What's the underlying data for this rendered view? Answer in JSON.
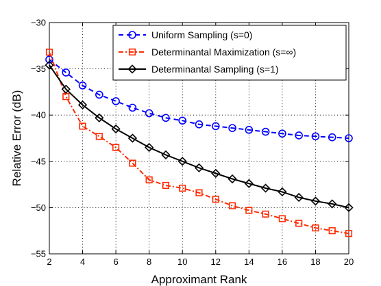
{
  "chart_data": {
    "type": "line",
    "xlabel": "Approximant Rank",
    "ylabel": "Relative Error (dB)",
    "xlim": [
      2,
      20
    ],
    "ylim": [
      -55,
      -30
    ],
    "xticks": [
      2,
      4,
      6,
      8,
      10,
      12,
      14,
      16,
      18,
      20
    ],
    "xtick_labels": [
      "2",
      "4",
      "6",
      "8",
      "10",
      "12",
      "14",
      "16",
      "18",
      "20"
    ],
    "yticks": [
      -55,
      -50,
      -45,
      -40,
      -35,
      -30
    ],
    "ytick_labels": [
      "−55",
      "−50",
      "−45",
      "−40",
      "−35",
      "−30"
    ],
    "grid": true,
    "legend_position": "top-right",
    "x": [
      2,
      3,
      4,
      5,
      6,
      7,
      8,
      9,
      10,
      11,
      12,
      13,
      14,
      15,
      16,
      17,
      18,
      19,
      20
    ],
    "series": [
      {
        "name": "Uniform Sampling (s=0)",
        "color": "#0000ff",
        "line_style": "dashed",
        "marker": "circle",
        "values": [
          -34.0,
          -35.4,
          -36.8,
          -37.8,
          -38.5,
          -39.2,
          -39.8,
          -40.3,
          -40.6,
          -41.0,
          -41.2,
          -41.4,
          -41.6,
          -41.8,
          -42.0,
          -42.2,
          -42.3,
          -42.4,
          -42.5
        ]
      },
      {
        "name": "Determinantal Maximization (s=∞)",
        "color": "#ff2a00",
        "line_style": "dashdot",
        "marker": "square",
        "values": [
          -33.2,
          -38.0,
          -41.2,
          -42.3,
          -43.5,
          -45.2,
          -47.0,
          -47.6,
          -47.9,
          -48.4,
          -49.1,
          -49.8,
          -50.3,
          -50.7,
          -51.2,
          -51.7,
          -52.2,
          -52.5,
          -52.8
        ]
      },
      {
        "name": "Determinantal Sampling (s=1)",
        "color": "#000000",
        "line_style": "solid",
        "marker": "diamond",
        "values": [
          -34.6,
          -37.2,
          -38.9,
          -40.3,
          -41.5,
          -42.5,
          -43.5,
          -44.3,
          -45.0,
          -45.7,
          -46.3,
          -46.9,
          -47.4,
          -47.9,
          -48.3,
          -48.9,
          -49.3,
          -49.6,
          -50.0
        ]
      }
    ]
  }
}
